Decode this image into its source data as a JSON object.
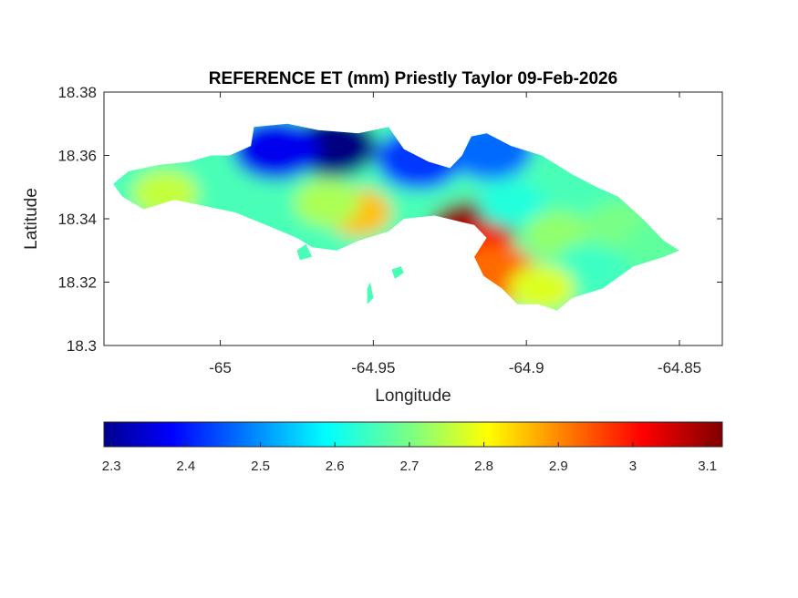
{
  "chart_data": {
    "type": "heatmap",
    "title": "REFERENCE ET (mm) Priestly Taylor 09-Feb-2026",
    "xlabel": "Longitude",
    "ylabel": "Latitude",
    "xlim": [
      -65.038,
      -64.836
    ],
    "ylim": [
      18.3,
      18.38
    ],
    "xticks": [
      -65,
      -64.95,
      -64.9,
      -64.85
    ],
    "xtick_labels": [
      "-65",
      "-64.95",
      "-64.9",
      "-64.85"
    ],
    "yticks": [
      18.38,
      18.36,
      18.34,
      18.32,
      18.3
    ],
    "ytick_labels": [
      "18.38",
      "18.36",
      "18.34",
      "18.32",
      "18.3"
    ],
    "grid": false,
    "colormap": "jet",
    "colorbar": {
      "orientation": "horizontal",
      "placement": "bottom",
      "range": [
        2.29,
        3.12
      ],
      "ticks": [
        2.3,
        2.4,
        2.5,
        2.6,
        2.7,
        2.8,
        2.9,
        3,
        3.1
      ],
      "tick_labels": [
        "2.3",
        "2.4",
        "2.5",
        "2.6",
        "2.7",
        "2.8",
        "2.9",
        "3",
        "3.1"
      ]
    },
    "island_outline_lonlat": [
      [
        -65.035,
        18.351
      ],
      [
        -65.03,
        18.355
      ],
      [
        -65.02,
        18.357
      ],
      [
        -65.01,
        18.358
      ],
      [
        -65.003,
        18.36
      ],
      [
        -64.997,
        18.36
      ],
      [
        -64.99,
        18.363
      ],
      [
        -64.989,
        18.369
      ],
      [
        -64.978,
        18.37
      ],
      [
        -64.968,
        18.368
      ],
      [
        -64.955,
        18.367
      ],
      [
        -64.945,
        18.369
      ],
      [
        -64.94,
        18.362
      ],
      [
        -64.932,
        18.358
      ],
      [
        -64.925,
        18.356
      ],
      [
        -64.921,
        18.36
      ],
      [
        -64.918,
        18.366
      ],
      [
        -64.913,
        18.367
      ],
      [
        -64.905,
        18.363
      ],
      [
        -64.895,
        18.36
      ],
      [
        -64.885,
        18.354
      ],
      [
        -64.877,
        18.35
      ],
      [
        -64.87,
        18.347
      ],
      [
        -64.862,
        18.34
      ],
      [
        -64.855,
        18.333
      ],
      [
        -64.85,
        18.33
      ],
      [
        -64.855,
        18.328
      ],
      [
        -64.865,
        18.325
      ],
      [
        -64.875,
        18.318
      ],
      [
        -64.885,
        18.315
      ],
      [
        -64.89,
        18.311
      ],
      [
        -64.896,
        18.313
      ],
      [
        -64.903,
        18.313
      ],
      [
        -64.908,
        18.318
      ],
      [
        -64.914,
        18.322
      ],
      [
        -64.917,
        18.328
      ],
      [
        -64.913,
        18.334
      ],
      [
        -64.917,
        18.338
      ],
      [
        -64.93,
        18.341
      ],
      [
        -64.94,
        18.34
      ],
      [
        -64.945,
        18.336
      ],
      [
        -64.955,
        18.333
      ],
      [
        -64.962,
        18.33
      ],
      [
        -64.97,
        18.331
      ],
      [
        -64.975,
        18.334
      ],
      [
        -64.985,
        18.338
      ],
      [
        -64.995,
        18.342
      ],
      [
        -65.005,
        18.344
      ],
      [
        -65.015,
        18.346
      ],
      [
        -65.025,
        18.343
      ],
      [
        -65.032,
        18.347
      ]
    ],
    "islets_lonlat": [
      [
        [
          -64.944,
          18.324
        ],
        [
          -64.941,
          18.325
        ],
        [
          -64.94,
          18.323
        ],
        [
          -64.943,
          18.321
        ]
      ],
      [
        [
          -64.952,
          18.318
        ],
        [
          -64.951,
          18.32
        ],
        [
          -64.95,
          18.315
        ],
        [
          -64.952,
          18.313
        ]
      ],
      [
        [
          -64.975,
          18.33
        ],
        [
          -64.972,
          18.332
        ],
        [
          -64.97,
          18.328
        ],
        [
          -64.974,
          18.327
        ]
      ]
    ],
    "value_hotspots": [
      {
        "lon": -64.963,
        "lat": 18.363,
        "value": 2.29
      },
      {
        "lon": -64.982,
        "lat": 18.362,
        "value": 2.38
      },
      {
        "lon": -64.935,
        "lat": 18.359,
        "value": 2.44
      },
      {
        "lon": -64.912,
        "lat": 18.362,
        "value": 2.48
      },
      {
        "lon": -65.028,
        "lat": 18.351,
        "value": 2.66
      },
      {
        "lon": -65.018,
        "lat": 18.348,
        "value": 2.76
      },
      {
        "lon": -64.955,
        "lat": 18.342,
        "value": 2.86
      },
      {
        "lon": -64.965,
        "lat": 18.345,
        "value": 2.74
      },
      {
        "lon": -64.918,
        "lat": 18.336,
        "value": 3.12
      },
      {
        "lon": -64.917,
        "lat": 18.328,
        "value": 3.0
      },
      {
        "lon": -64.91,
        "lat": 18.322,
        "value": 2.93
      },
      {
        "lon": -64.905,
        "lat": 18.345,
        "value": 2.63
      },
      {
        "lon": -64.89,
        "lat": 18.335,
        "value": 2.72
      },
      {
        "lon": -64.88,
        "lat": 18.325,
        "value": 2.65
      },
      {
        "lon": -64.87,
        "lat": 18.338,
        "value": 2.7
      },
      {
        "lon": -64.858,
        "lat": 18.331,
        "value": 2.68
      },
      {
        "lon": -64.895,
        "lat": 18.318,
        "value": 2.78
      }
    ]
  }
}
